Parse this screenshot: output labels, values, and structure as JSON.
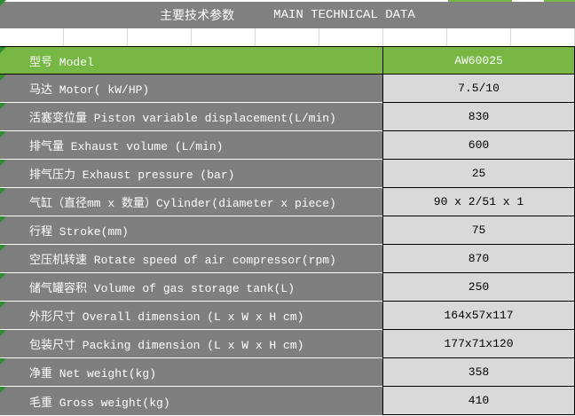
{
  "header": {
    "title_zh": "主要技术参数",
    "title_en": "MAIN TECHNICAL DATA"
  },
  "table": {
    "model_row": {
      "label": "型号 Model",
      "value": "AW60025"
    },
    "rows": [
      {
        "label": "马达 Motor( kW/HP)",
        "value": "7.5/10"
      },
      {
        "label": "活塞变位量 Piston variable displacement(L/min)",
        "value": "830"
      },
      {
        "label": "排气量 Exhaust volume (L/min)",
        "value": "600"
      },
      {
        "label": "排气压力 Exhaust pressure (bar)",
        "value": "25"
      },
      {
        "label": "气缸（直径mm x 数量）Cylinder(diameter x piece)",
        "value": "90 x 2/51 x 1"
      },
      {
        "label": "行程 Stroke(mm)",
        "value": "75"
      },
      {
        "label": "空压机转速 Rotate speed of air compressor(rpm)",
        "value": "870"
      },
      {
        "label": "储气罐容积 Volume of gas storage tank(L)",
        "value": "250"
      },
      {
        "label": "外形尺寸 Overall dimension (L x W x H cm)",
        "value": "164x57x117"
      },
      {
        "label": "包装尺寸 Packing dimension (L x W x H cm)",
        "value": "177x71x120"
      },
      {
        "label": "净重 Net weight(kg)",
        "value": "358"
      },
      {
        "label": "毛重 Gross weight(kg)",
        "value": "410"
      }
    ]
  },
  "colors": {
    "header_green": "#76b843",
    "label_gray": "#7f7f7f",
    "title_gray": "#808080",
    "value_bg": "#d9d9d9",
    "error_triangle_green": "#2e8b2e"
  }
}
